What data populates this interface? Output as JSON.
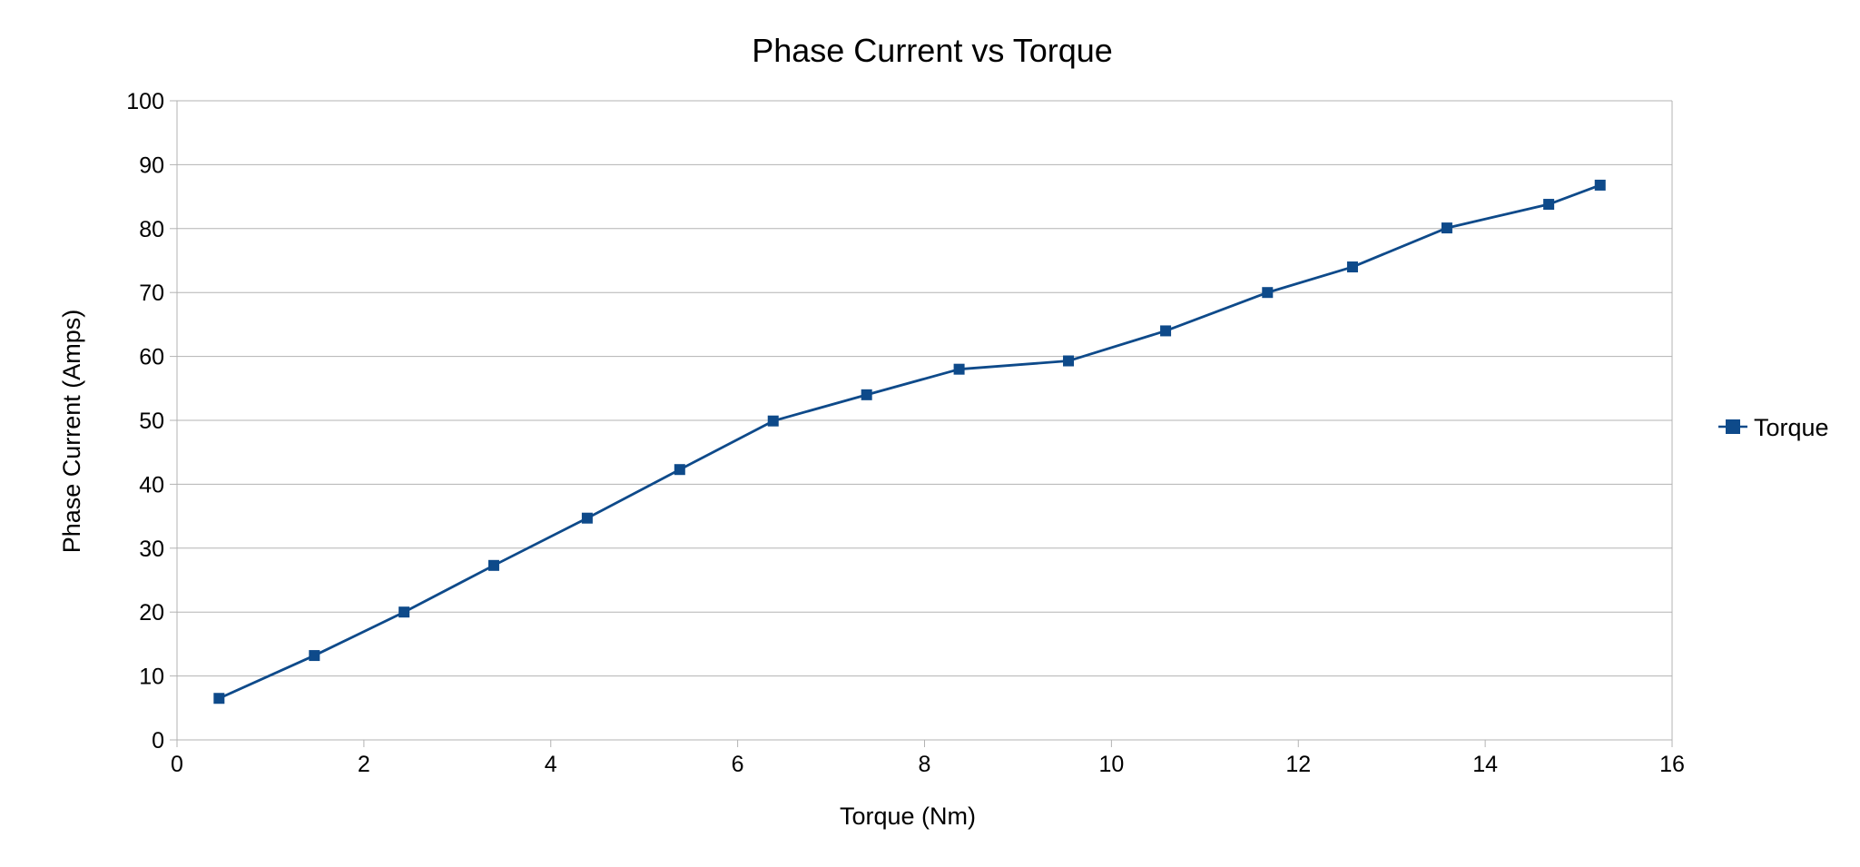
{
  "chart_data": {
    "type": "line",
    "title": "Phase Current vs Torque",
    "xlabel": "Torque (Nm)",
    "ylabel": "Phase Current (Amps)",
    "xlim": [
      0,
      16
    ],
    "ylim": [
      0,
      100
    ],
    "x_ticks": [
      0,
      2,
      4,
      6,
      8,
      10,
      12,
      14,
      16
    ],
    "y_ticks": [
      0,
      10,
      20,
      30,
      40,
      50,
      60,
      70,
      80,
      90,
      100
    ],
    "grid": "horizontal",
    "legend_position": "right",
    "series": [
      {
        "name": "Torque",
        "color": "#0e4a8a",
        "marker": "square",
        "x": [
          0.45,
          1.47,
          2.43,
          3.39,
          4.39,
          5.38,
          6.38,
          7.38,
          8.37,
          9.54,
          10.58,
          11.67,
          12.58,
          13.59,
          14.68,
          15.23
        ],
        "y": [
          6.5,
          13.2,
          20.0,
          27.3,
          34.7,
          42.3,
          49.9,
          54.0,
          58.0,
          59.3,
          64.0,
          70.0,
          74.0,
          80.1,
          83.8,
          86.8
        ]
      }
    ]
  }
}
